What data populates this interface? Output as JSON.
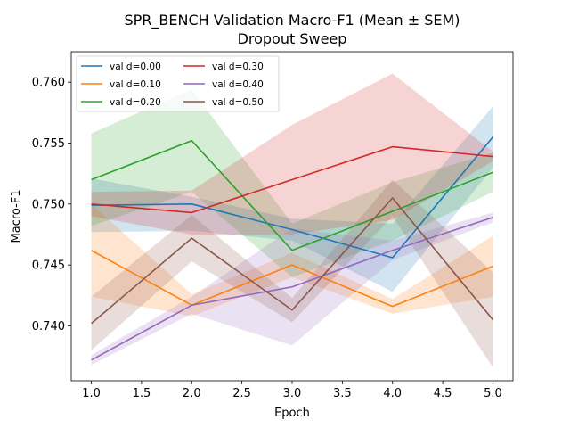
{
  "chart_data": {
    "type": "line",
    "title": "SPR_BENCH Validation Macro-F1 (Mean ± SEM)",
    "subtitle": "Dropout Sweep",
    "xlabel": "Epoch",
    "ylabel": "Macro-F1",
    "xlim": [
      0.8,
      5.2
    ],
    "ylim": [
      0.7355,
      0.7625
    ],
    "x_ticks": [
      1.0,
      1.5,
      2.0,
      2.5,
      3.0,
      3.5,
      4.0,
      4.5,
      5.0
    ],
    "x_tick_labels": [
      "1.0",
      "1.5",
      "2.0",
      "2.5",
      "3.0",
      "3.5",
      "4.0",
      "4.5",
      "5.0"
    ],
    "y_ticks": [
      0.74,
      0.745,
      0.75,
      0.755,
      0.76
    ],
    "y_tick_labels": [
      "0.740",
      "0.745",
      "0.750",
      "0.755",
      "0.760"
    ],
    "grid": false,
    "legend_position": "upper-left",
    "legend_columns": 2,
    "x": [
      1,
      2,
      3,
      4,
      5
    ],
    "series": [
      {
        "name": "val d=0.00",
        "color": "#1f77b4",
        "mean": [
          0.7499,
          0.75,
          0.7479,
          0.7456,
          0.7555
        ],
        "lower": [
          0.7477,
          0.7478,
          0.747,
          0.7428,
          0.753
        ],
        "upper": [
          0.7521,
          0.7506,
          0.7488,
          0.7484,
          0.758
        ]
      },
      {
        "name": "val d=0.10",
        "color": "#ff7f0e",
        "mean": [
          0.7462,
          0.7417,
          0.745,
          0.7416,
          0.7449
        ],
        "lower": [
          0.7424,
          0.7408,
          0.744,
          0.741,
          0.7424
        ],
        "upper": [
          0.75,
          0.7426,
          0.746,
          0.7422,
          0.7474
        ]
      },
      {
        "name": "val d=0.20",
        "color": "#2ca02c",
        "mean": [
          0.752,
          0.7552,
          0.7462,
          0.7494,
          0.7526
        ],
        "lower": [
          0.7482,
          0.751,
          0.744,
          0.747,
          0.751
        ],
        "upper": [
          0.7558,
          0.7594,
          0.7484,
          0.7518,
          0.7542
        ]
      },
      {
        "name": "val d=0.30",
        "color": "#d62728",
        "mean": [
          0.75,
          0.7493,
          0.752,
          0.7547,
          0.7539
        ],
        "lower": [
          0.749,
          0.7475,
          0.7475,
          0.7487,
          0.7535
        ],
        "upper": [
          0.751,
          0.7511,
          0.7565,
          0.7607,
          0.7543
        ]
      },
      {
        "name": "val d=0.40",
        "color": "#9467bd",
        "mean": [
          0.7372,
          0.7417,
          0.7432,
          0.7462,
          0.7489
        ],
        "lower": [
          0.7368,
          0.741,
          0.7384,
          0.7454,
          0.7485
        ],
        "upper": [
          0.7376,
          0.7424,
          0.748,
          0.747,
          0.7493
        ]
      },
      {
        "name": "val d=0.50",
        "color": "#8c564b",
        "mean": [
          0.7402,
          0.7472,
          0.7413,
          0.7505,
          0.7405
        ],
        "lower": [
          0.738,
          0.7453,
          0.7403,
          0.749,
          0.7366
        ],
        "upper": [
          0.7424,
          0.7491,
          0.7423,
          0.752,
          0.7444
        ]
      }
    ]
  }
}
